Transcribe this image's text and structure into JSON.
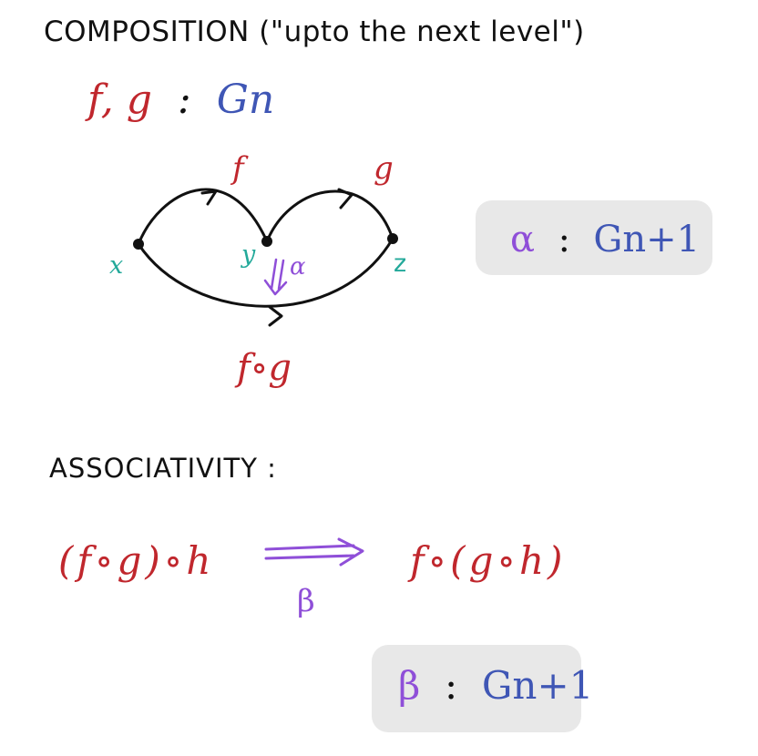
{
  "heading": "COMPOSITION (\"upto the next level\")",
  "composition": {
    "type_line_f": "f",
    "type_line_comma": ",",
    "type_line_g": "g",
    "type_line_colon": ":",
    "type_line_type": "Gn",
    "arrow_f": "f",
    "arrow_g": "g",
    "object_x": "x",
    "object_y": "y",
    "object_z": "z",
    "cell_arrow": "⇓",
    "cell_alpha": "α",
    "composite": "f∘g"
  },
  "alpha_box": {
    "symbol": "α",
    "colon": ":",
    "type": "Gn+1"
  },
  "associativity": {
    "heading": "ASSOCIATIVITY :",
    "left_expr": "(f∘g)∘h",
    "right_expr": "f∘(g∘h)",
    "arrow_label": "β"
  },
  "beta_box": {
    "symbol": "β",
    "colon": ":",
    "type": "Gn+1"
  },
  "colors": {
    "black": "#111111",
    "red": "#c0272d",
    "blue": "#3f56b5",
    "teal": "#23a99a",
    "purple": "#8f4fd8",
    "box": "#e8e8e8"
  }
}
